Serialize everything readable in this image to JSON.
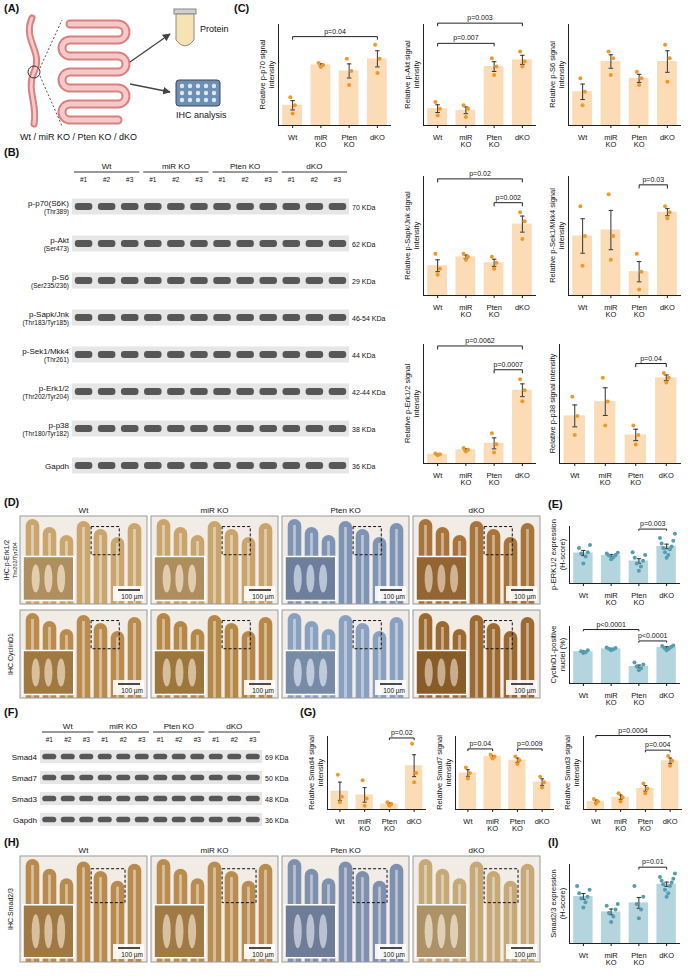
{
  "panels": {
    "A": {
      "letter": "(A)",
      "genotypes_label": "Wt / miR KO / Pten KO / dKO",
      "protein_label": "Protein",
      "ihc_label": "IHC analysis"
    },
    "B": {
      "letter": "(B)",
      "groups": [
        "Wt",
        "miR KO",
        "Pten KO",
        "dKO"
      ],
      "samples": [
        "#1",
        "#2",
        "#3"
      ],
      "bands": [
        {
          "name": "p-p70(S6K)",
          "site": "(Thr389)",
          "size": "70 KDa"
        },
        {
          "name": "p-Akt",
          "site": "(Ser473)",
          "size": "62 KDa"
        },
        {
          "name": "p-S6",
          "site": "(Ser235/236)",
          "size": "29 KDa"
        },
        {
          "name": "p-Sapk/Jnk",
          "site": "(Thr183/Tyr185)",
          "size": "46-54 KDa"
        },
        {
          "name": "p-Sek1/Mkk4",
          "site": "(Thr261)",
          "size": "44 KDa"
        },
        {
          "name": "p-Erk1/2",
          "site": "(Thr202/Tyr204)",
          "size": "42-44 KDa"
        },
        {
          "name": "p-p38",
          "site": "(Thr180/Tyr182)",
          "size": "38 KDa"
        },
        {
          "name": "Gapdh",
          "size": "36 KDa"
        }
      ]
    },
    "C": {
      "letter": "(C)"
    },
    "D": {
      "letter": "(D)",
      "groups": [
        "Wt",
        "miR KO",
        "Pten KO",
        "dKO"
      ],
      "scale_bar": "100 µm",
      "rows": [
        {
          "label": "IHC:p-Erk1/2",
          "superscript": "Thr202/Tyr204",
          "colors": [
            "#caa56e",
            "#c9a46c",
            "#7f93b5",
            "#a8743a"
          ]
        },
        {
          "label": "IHC:CyclinD1",
          "colors": [
            "#b98b4c",
            "#b58847",
            "#8aa0c0",
            "#9c6a30"
          ]
        }
      ]
    },
    "E": {
      "letter": "(E)"
    },
    "F": {
      "letter": "(F)",
      "groups": [
        "Wt",
        "miR KO",
        "Pten KO",
        "dKO"
      ],
      "samples": [
        "#1",
        "#2",
        "#3"
      ],
      "bands": [
        {
          "name": "Smad4",
          "size": "69 KDa"
        },
        {
          "name": "Smad7",
          "size": "50 KDa"
        },
        {
          "name": "Smad3",
          "size": "48 KDa"
        },
        {
          "name": "Gapdh",
          "size": "36 KDa"
        }
      ]
    },
    "G": {
      "letter": "(G)"
    },
    "H": {
      "letter": "(H)",
      "label": "IHC:Smad2/3",
      "groups": [
        "Wt",
        "miR KO",
        "Pten KO",
        "dKO"
      ],
      "scale_bar": "100 µm",
      "colors": [
        "#b88a4e",
        "#b98d50",
        "#7f8fae",
        "#c7a877"
      ]
    },
    "I": {
      "letter": "(I)"
    }
  },
  "chart_data": [
    {
      "type": "bar",
      "y_label": "Relative p-p70 signal intensity",
      "categories": [
        "Wt",
        "miR KO",
        "Pten KO",
        "dKO"
      ],
      "values": [
        1.0,
        3.0,
        2.7,
        3.3
      ],
      "errors": [
        0.23,
        0.06,
        0.35,
        0.4
      ],
      "points": [
        [
          0.6,
          1.0,
          1.4
        ],
        [
          2.9,
          3.0,
          3.1
        ],
        [
          2.0,
          2.7,
          3.3
        ],
        [
          2.6,
          3.3,
          4.0
        ]
      ],
      "color": "#fbdcb6",
      "ylim": [
        0,
        5
      ],
      "tick_labels": "x",
      "annotations": [
        {
          "from": "Wt",
          "to": "dKO",
          "text": "p=0.04"
        }
      ]
    },
    {
      "type": "bar",
      "y_label": "Relative p-Akt signal intensity",
      "categories": [
        "Wt",
        "miR KO",
        "Pten KO",
        "dKO"
      ],
      "values": [
        1.0,
        0.9,
        3.5,
        3.9
      ],
      "errors": [
        0.23,
        0.2,
        0.29,
        0.27
      ],
      "points": [
        [
          0.6,
          1.0,
          1.4
        ],
        [
          0.5,
          1.0,
          1.2
        ],
        [
          3.0,
          3.5,
          4.0
        ],
        [
          3.5,
          3.8,
          4.4
        ]
      ],
      "color": "#fbdcb6",
      "ylim": [
        0,
        6
      ],
      "tick_labels": "x",
      "annotations": [
        {
          "from": "Wt",
          "to": "Pten KO",
          "text": "p=0.007"
        },
        {
          "from": "Wt",
          "to": "dKO",
          "text": "p=0.003"
        }
      ]
    },
    {
      "type": "bar",
      "y_label": "Relative p-S6 signal intensity",
      "categories": [
        "Wt",
        "miR KO",
        "Pten KO",
        "dKO"
      ],
      "values": [
        1.0,
        1.9,
        1.4,
        1.9
      ],
      "errors": [
        0.23,
        0.2,
        0.12,
        0.32
      ],
      "points": [
        [
          0.6,
          1.0,
          1.4
        ],
        [
          1.5,
          2.0,
          2.2
        ],
        [
          1.2,
          1.4,
          1.6
        ],
        [
          1.3,
          2.0,
          2.4
        ]
      ],
      "color": "#fbdcb6",
      "ylim": [
        0,
        3
      ],
      "tick_labels": "x"
    },
    {
      "type": "bar",
      "y_label": "Relative p-Sapk/Jnk signal intensity",
      "categories": [
        "Wt",
        "miR KO",
        "Pten KO",
        "dKO"
      ],
      "values": [
        1.0,
        1.3,
        1.1,
        2.4
      ],
      "errors": [
        0.2,
        0.06,
        0.12,
        0.27
      ],
      "points": [
        [
          0.7,
          0.9,
          1.4
        ],
        [
          1.2,
          1.3,
          1.4
        ],
        [
          0.9,
          1.1,
          1.3
        ],
        [
          1.9,
          2.5,
          2.8
        ]
      ],
      "color": "#fbdcb6",
      "ylim": [
        0,
        4
      ],
      "tick_labels": "x",
      "annotations": [
        {
          "from": "Wt",
          "to": "dKO",
          "text": "p=0.02"
        },
        {
          "from": "Pten KO",
          "to": "dKO",
          "text": "p=0.002"
        }
      ]
    },
    {
      "type": "bar",
      "y_label": "Relative p-Sek1/Mkk4 signal intensity",
      "categories": [
        "Wt",
        "miR KO",
        "Pten KO",
        "dKO"
      ],
      "values": [
        1.0,
        1.1,
        0.4,
        1.4
      ],
      "errors": [
        0.29,
        0.33,
        0.17,
        0.06
      ],
      "points": [
        [
          0.5,
          1.0,
          1.5
        ],
        [
          0.6,
          1.0,
          1.7
        ],
        [
          0.1,
          0.4,
          0.7
        ],
        [
          1.3,
          1.4,
          1.5
        ]
      ],
      "color": "#fbdcb6",
      "ylim": [
        0,
        2
      ],
      "tick_labels": "x",
      "annotations": [
        {
          "from": "Pten KO",
          "to": "dKO",
          "text": "p=0.03"
        }
      ]
    },
    {
      "type": "bar",
      "y_label": "Relative p-Erk1/2 signal intensity",
      "categories": [
        "Wt",
        "miR KO",
        "Pten KO",
        "dKO"
      ],
      "values": [
        1.0,
        1.5,
        2.2,
        8.0
      ],
      "errors": [
        0.06,
        0.12,
        0.6,
        0.7
      ],
      "points": [
        [
          0.9,
          1.0,
          1.1
        ],
        [
          1.3,
          1.5,
          1.7
        ],
        [
          1.2,
          2.1,
          3.3
        ],
        [
          6.8,
          8.0,
          9.2
        ]
      ],
      "color": "#fbdcb6",
      "ylim": [
        0,
        13
      ],
      "tick_labels": "x",
      "annotations": [
        {
          "from": "Wt",
          "to": "dKO",
          "text": "p=0.0062"
        },
        {
          "from": "Pten KO",
          "to": "dKO",
          "text": "p=0.0007"
        }
      ]
    },
    {
      "type": "bar",
      "y_label": "Relative p-p38 signal intensity",
      "categories": [
        "Wt",
        "miR KO",
        "Pten KO",
        "dKO"
      ],
      "values": [
        1.0,
        1.3,
        0.6,
        1.8
      ],
      "errors": [
        0.23,
        0.29,
        0.12,
        0.06
      ],
      "points": [
        [
          0.6,
          1.0,
          1.4
        ],
        [
          0.8,
          1.3,
          1.8
        ],
        [
          0.4,
          0.6,
          0.8
        ],
        [
          1.7,
          1.8,
          1.9
        ]
      ],
      "color": "#fbdcb6",
      "ylim": [
        0,
        2.5
      ],
      "tick_labels": "x",
      "annotations": [
        {
          "from": "Pten KO",
          "to": "dKO",
          "text": "p=0.04"
        }
      ]
    },
    {
      "type": "bar",
      "y_label": "p-ERK1/2 expression (H-score)",
      "categories": [
        "Wt",
        "miR KO",
        "Pten KO",
        "dKO"
      ],
      "values": [
        107,
        98,
        79,
        130
      ],
      "errors": [
        9,
        4,
        8,
        8
      ],
      "points": [
        [
          70,
          95,
          105,
          110,
          125,
          135
        ],
        [
          85,
          92,
          98,
          100,
          105,
          108
        ],
        [
          45,
          60,
          70,
          80,
          90,
          100,
          110
        ],
        [
          90,
          100,
          110,
          120,
          125,
          130,
          140,
          150,
          160,
          175
        ]
      ],
      "color": "#b5d5de",
      "ylim": [
        0,
        200
      ],
      "tick_labels": "x",
      "annotations": [
        {
          "from": "Pten KO",
          "to": "dKO",
          "text": "p=0.003"
        }
      ]
    },
    {
      "type": "bar",
      "y_label": "CyclinD1-positive nuclei (%)",
      "categories": [
        "Wt",
        "miR KO",
        "Pten KO",
        "dKO"
      ],
      "values": [
        67,
        73,
        36,
        76
      ],
      "errors": [
        1.3,
        1.1,
        2.8,
        1.5
      ],
      "points": [
        [
          64,
          66,
          68,
          70
        ],
        [
          70,
          72,
          73,
          75,
          76
        ],
        [
          28,
          32,
          36,
          40,
          44
        ],
        [
          70,
          73,
          75,
          77,
          79,
          80
        ]
      ],
      "color": "#b5d5de",
      "ylim": [
        0,
        120
      ],
      "tick_labels": "x",
      "annotations": [
        {
          "from": "Wt",
          "to": "Pten KO",
          "text": "p<0.0001"
        },
        {
          "from": "Pten KO",
          "to": "dKO",
          "text": "p<0.0001"
        }
      ]
    },
    {
      "type": "bar",
      "y_label": "Relative Smad4 signal intensity",
      "categories": [
        "Wt",
        "miR KO",
        "Pten KO",
        "dKO"
      ],
      "values": [
        1.0,
        0.8,
        0.3,
        2.4
      ],
      "errors": [
        0.5,
        0.4,
        0.06,
        0.6
      ],
      "points": [
        [
          0.4,
          0.7,
          1.9
        ],
        [
          0.2,
          0.6,
          1.6
        ],
        [
          0.2,
          0.3,
          0.4
        ],
        [
          1.5,
          2.0,
          3.6
        ]
      ],
      "color": "#fbdcb6",
      "ylim": [
        0,
        4
      ],
      "tick_labels": "x",
      "annotations": [
        {
          "from": "Pten KO",
          "to": "dKO",
          "text": "p=0.02"
        }
      ]
    },
    {
      "type": "bar",
      "y_label": "Relative Smad7 signal intensity",
      "categories": [
        "Wt",
        "miR KO",
        "Pten KO",
        "dKO"
      ],
      "values": [
        1.0,
        1.45,
        1.35,
        0.75
      ],
      "errors": [
        0.09,
        0.03,
        0.06,
        0.09
      ],
      "points": [
        [
          0.85,
          1.0,
          1.15
        ],
        [
          1.4,
          1.45,
          1.5
        ],
        [
          1.25,
          1.35,
          1.45
        ],
        [
          0.6,
          0.75,
          0.9
        ]
      ],
      "color": "#fbdcb6",
      "ylim": [
        0,
        2
      ],
      "tick_labels": "x",
      "annotations": [
        {
          "from": "Wt",
          "to": "miR KO",
          "text": "p=0.04"
        },
        {
          "from": "Pten KO",
          "to": "dKO",
          "text": "p=0.009"
        }
      ]
    },
    {
      "type": "bar",
      "y_label": "Relative Smad3 signal intensity",
      "categories": [
        "Wt",
        "miR KO",
        "Pten KO",
        "dKO"
      ],
      "values": [
        1.0,
        1.5,
        2.6,
        6.0
      ],
      "errors": [
        0.17,
        0.29,
        0.35,
        0.35
      ],
      "points": [
        [
          0.7,
          1.0,
          1.3
        ],
        [
          1.0,
          1.5,
          2.0
        ],
        [
          2.0,
          2.6,
          3.2
        ],
        [
          5.4,
          6.0,
          6.6
        ]
      ],
      "color": "#fbdcb6",
      "ylim": [
        0,
        9
      ],
      "tick_labels": "x",
      "annotations": [
        {
          "from": "Wt",
          "to": "dKO",
          "text": "p=0.0004"
        },
        {
          "from": "Pten KO",
          "to": "dKO",
          "text": "p=0.004"
        }
      ]
    },
    {
      "type": "bar",
      "y_label": "Smad2/3 expression (H-score)",
      "categories": [
        "Wt",
        "miR KO",
        "Pten KO",
        "dKO"
      ],
      "values": [
        131,
        88,
        113,
        165
      ],
      "errors": [
        8,
        8,
        15,
        6
      ],
      "points": [
        [
          100,
          115,
          125,
          130,
          140,
          150,
          160
        ],
        [
          60,
          75,
          85,
          95,
          105,
          110
        ],
        [
          70,
          95,
          110,
          130,
          160
        ],
        [
          130,
          140,
          150,
          160,
          165,
          170,
          175,
          180,
          185,
          195
        ]
      ],
      "color": "#b5d5de",
      "ylim": [
        0,
        220
      ],
      "tick_labels": "x",
      "annotations": [
        {
          "from": "Pten KO",
          "to": "dKO",
          "text": "p=0.01"
        }
      ]
    }
  ]
}
